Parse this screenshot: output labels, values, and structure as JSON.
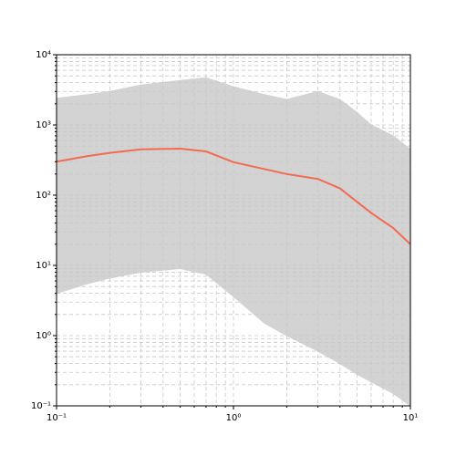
{
  "chart_data": {
    "type": "line",
    "xscale": "log",
    "yscale": "log",
    "grid": true,
    "xlim": [
      0.1,
      10
    ],
    "ylim": [
      0.1,
      10000
    ],
    "xticks": [
      {
        "value": 0.1,
        "label": "10⁻¹"
      },
      {
        "value": 1,
        "label": "10⁰"
      },
      {
        "value": 10,
        "label": "10¹"
      }
    ],
    "yticks": [
      {
        "value": 0.1,
        "label": "10⁻¹"
      },
      {
        "value": 1,
        "label": "10⁰"
      },
      {
        "value": 10,
        "label": "10¹"
      },
      {
        "value": 100,
        "label": "10²"
      },
      {
        "value": 1000,
        "label": "10³"
      },
      {
        "value": 10000,
        "label": "10⁴"
      }
    ],
    "xminorticks": [
      0.2,
      0.3,
      0.4,
      0.5,
      0.6,
      0.7,
      0.8,
      0.9,
      2,
      3,
      4,
      5,
      6,
      7,
      8,
      9
    ],
    "yminorticks": [
      0.2,
      0.3,
      0.4,
      0.5,
      0.6,
      0.7,
      0.8,
      0.9,
      2,
      3,
      4,
      5,
      6,
      7,
      8,
      9,
      20,
      30,
      40,
      50,
      60,
      70,
      80,
      90,
      200,
      300,
      400,
      500,
      600,
      700,
      800,
      900,
      2000,
      3000,
      4000,
      5000,
      6000,
      7000,
      8000,
      9000
    ],
    "x": [
      0.1,
      0.15,
      0.2,
      0.3,
      0.5,
      0.7,
      1,
      1.5,
      2,
      3,
      4,
      5,
      6,
      8,
      10
    ],
    "band": {
      "color": "#d3d3d3",
      "upper": [
        2400,
        2700,
        3000,
        3700,
        4300,
        4700,
        3500,
        2700,
        2300,
        3000,
        2300,
        1500,
        1000,
        700,
        450
      ],
      "lower": [
        4,
        5.5,
        6.6,
        8,
        9,
        7.5,
        3.6,
        1.5,
        1,
        0.6,
        0.4,
        0.28,
        0.22,
        0.15,
        0.1
      ]
    },
    "series": [
      {
        "color": "#f26b50",
        "values": [
          300,
          360,
          400,
          450,
          460,
          420,
          295,
          235,
          200,
          170,
          125,
          80,
          56,
          34,
          20
        ]
      }
    ]
  }
}
